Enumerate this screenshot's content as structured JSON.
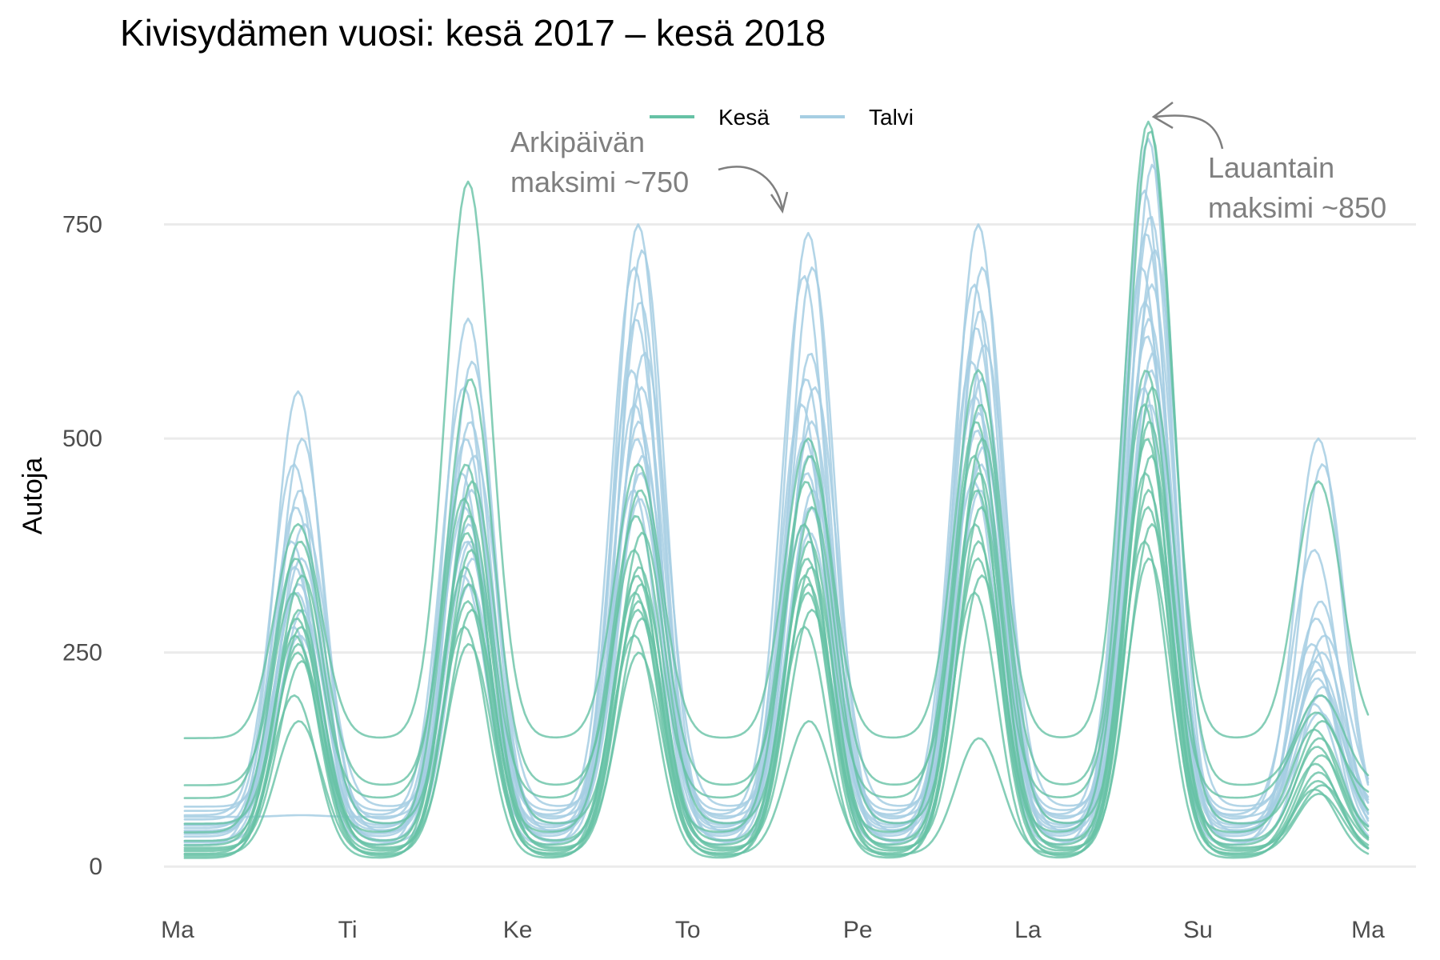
{
  "chart_data": {
    "type": "line",
    "title": "Kivisydämen vuosi: kesä 2017 – kesä 2018",
    "xlabel": "",
    "ylabel": "Autoja",
    "x_unit": "hours since Monday 00:00",
    "x_ticks": [
      {
        "value": 0,
        "label": "Ma"
      },
      {
        "value": 24,
        "label": "Ti"
      },
      {
        "value": 48,
        "label": "Ke"
      },
      {
        "value": 72,
        "label": "To"
      },
      {
        "value": 96,
        "label": "Pe"
      },
      {
        "value": 120,
        "label": "La"
      },
      {
        "value": 144,
        "label": "Su"
      },
      {
        "value": 168,
        "label": "Ma"
      }
    ],
    "xlim": [
      0,
      168
    ],
    "y_ticks": [
      0,
      250,
      500,
      750
    ],
    "ylim": [
      -40,
      900
    ],
    "grid": "horizontal",
    "legend": {
      "position": "top",
      "entries": [
        {
          "label": "Kesä",
          "color": "#66c2a5"
        },
        {
          "label": "Talvi",
          "color": "#a6cee3"
        }
      ]
    },
    "annotations": [
      {
        "lines": [
          "Arkipäivän",
          "maksimi ~750"
        ],
        "points_to": {
          "x": 85,
          "y": 750
        }
      },
      {
        "lines": [
          "Lauantain",
          "maksimi ~850"
        ],
        "points_to": {
          "x": 137,
          "y": 860
        }
      }
    ],
    "series_groups": [
      {
        "name": "Talvi",
        "color": "#a6cee3",
        "series": [
          {
            "base": 55,
            "peaks": [
              555,
              640,
              750,
              740,
              750,
              850,
              500
            ],
            "shift": 0
          },
          {
            "base": 40,
            "peaks": [
              500,
              590,
              720,
              700,
              700,
              820,
              470
            ],
            "shift": 1
          },
          {
            "base": 60,
            "peaks": [
              470,
              560,
              700,
              690,
              680,
              790,
              370
            ],
            "shift": -1
          },
          {
            "base": 30,
            "peaks": [
              440,
              520,
              660,
              600,
              650,
              760,
              310
            ],
            "shift": 0.5
          },
          {
            "base": 45,
            "peaks": [
              420,
              500,
              640,
              570,
              630,
              740,
              290
            ],
            "shift": -0.5
          },
          {
            "base": 70,
            "peaks": [
              400,
              480,
              600,
              560,
              610,
              720,
              270
            ],
            "shift": 1.5
          },
          {
            "base": 25,
            "peaks": [
              380,
              460,
              580,
              540,
              590,
              700,
              260
            ],
            "shift": -1.5
          },
          {
            "base": 50,
            "peaks": [
              360,
              440,
              560,
              520,
              570,
              680,
              250
            ],
            "shift": 0.8
          },
          {
            "base": 35,
            "peaks": [
              350,
              420,
              540,
              500,
              550,
              660,
              240
            ],
            "shift": -0.8
          },
          {
            "base": 65,
            "peaks": [
              330,
              400,
              520,
              480,
              530,
              640,
              230
            ],
            "shift": 0.2
          },
          {
            "base": 42,
            "peaks": [
              320,
              380,
              500,
              460,
              510,
              620,
              220
            ],
            "shift": -0.3
          },
          {
            "base": 28,
            "peaks": [
              300,
              360,
              480,
              440,
              490,
              600,
              210
            ],
            "shift": 1.1
          },
          {
            "base": 58,
            "peaks": [
              60,
              380,
              460,
              420,
              470,
              580,
              200
            ],
            "shift": 0.6
          },
          {
            "base": 38,
            "peaks": [
              280,
              340,
              440,
              400,
              450,
              560,
              190
            ],
            "shift": -1.1
          },
          {
            "base": 48,
            "peaks": [
              270,
              330,
              430,
              390,
              440,
              540,
              180
            ],
            "shift": 0.4
          }
        ]
      },
      {
        "name": "Kesä",
        "color": "#66c2a5",
        "series": [
          {
            "base": 150,
            "peaks": [
              400,
              800,
              470,
              500,
              580,
              870,
              450
            ],
            "shift": 0
          },
          {
            "base": 95,
            "peaks": [
              380,
              570,
              440,
              480,
              540,
              860,
              200
            ],
            "shift": 0.5
          },
          {
            "base": 80,
            "peaks": [
              360,
              470,
              410,
              450,
              520,
              580,
              180
            ],
            "shift": -0.5
          },
          {
            "base": 50,
            "peaks": [
              340,
              450,
              390,
              420,
              500,
              560,
              170
            ],
            "shift": 1
          },
          {
            "base": 40,
            "peaks": [
              320,
              430,
              370,
              400,
              480,
              540,
              160
            ],
            "shift": -1
          },
          {
            "base": 30,
            "peaks": [
              300,
              410,
              350,
              380,
              460,
              520,
              150
            ],
            "shift": 0.3
          },
          {
            "base": 25,
            "peaks": [
              290,
              390,
              340,
              360,
              440,
              500,
              140
            ],
            "shift": -0.3
          },
          {
            "base": 20,
            "peaks": [
              280,
              370,
              330,
              350,
              420,
              480,
              130
            ],
            "shift": 0.7
          },
          {
            "base": 15,
            "peaks": [
              270,
              350,
              320,
              340,
              400,
              460,
              120
            ],
            "shift": -0.7
          },
          {
            "base": 12,
            "peaks": [
              260,
              330,
              310,
              330,
              380,
              440,
              110
            ],
            "shift": 0.1
          },
          {
            "base": 18,
            "peaks": [
              250,
              310,
              300,
              320,
              360,
              420,
              100
            ],
            "shift": -0.1
          },
          {
            "base": 22,
            "peaks": [
              240,
              300,
              290,
              300,
              340,
              400,
              95
            ],
            "shift": 0.9
          },
          {
            "base": 10,
            "peaks": [
              200,
              280,
              270,
              280,
              320,
              380,
              90
            ],
            "shift": -0.9
          },
          {
            "base": 14,
            "peaks": [
              170,
              260,
              250,
              170,
              150,
              360,
              85
            ],
            "shift": 0.2
          }
        ]
      }
    ]
  }
}
